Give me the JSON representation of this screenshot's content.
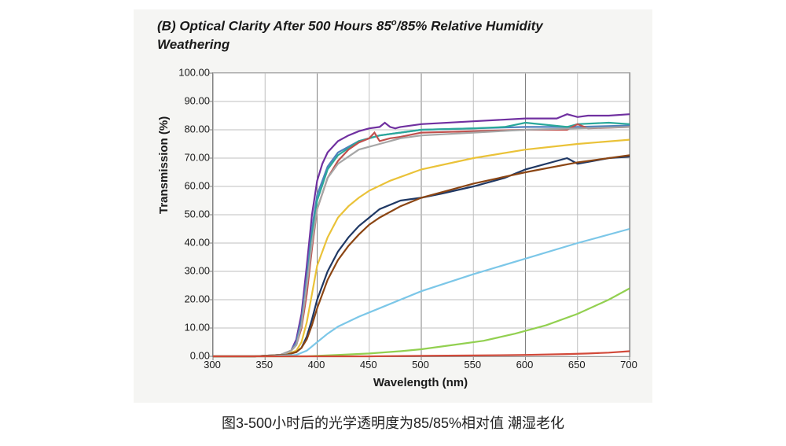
{
  "chart": {
    "type": "line",
    "title_html": "(B) Optical Clarity After 500 Hours 85<sup>o</sup>/85% Relative Humidity Weathering",
    "x_label": "Wavelength (nm)",
    "y_label": "Transmission (%)",
    "xlim": [
      300,
      700
    ],
    "ylim": [
      0,
      100
    ],
    "x_ticks": [
      300,
      350,
      400,
      450,
      500,
      550,
      600,
      650,
      700
    ],
    "y_ticks": [
      0,
      10,
      20,
      30,
      40,
      50,
      60,
      70,
      80,
      90,
      100
    ],
    "y_tick_format": "fixed2",
    "background_color": "#f5f5f3",
    "plot_bg": "#ffffff",
    "grid_color": "#bfbfbf",
    "major_grid_color": "#808080",
    "series": [
      {
        "name": "purple",
        "color": "#7030a0",
        "width": 2.4,
        "x": [
          300,
          340,
          365,
          375,
          380,
          385,
          390,
          395,
          400,
          405,
          410,
          420,
          430,
          440,
          450,
          460,
          465,
          470,
          475,
          480,
          500,
          550,
          600,
          630,
          640,
          650,
          660,
          680,
          700
        ],
        "y": [
          0,
          0,
          0.5,
          2,
          6,
          15,
          32,
          50,
          62,
          68,
          72,
          76,
          78,
          79.5,
          80.5,
          81,
          82.5,
          81,
          80.5,
          81,
          82,
          83,
          84,
          84,
          85.5,
          84.5,
          85,
          85,
          85.5
        ]
      },
      {
        "name": "steelblue",
        "color": "#4f81bd",
        "width": 2.2,
        "x": [
          300,
          340,
          365,
          375,
          380,
          385,
          390,
          395,
          400,
          410,
          420,
          440,
          460,
          480,
          500,
          550,
          600,
          650,
          700
        ],
        "y": [
          0,
          0,
          0.5,
          2,
          5,
          13,
          28,
          45,
          57,
          67,
          72,
          76,
          78,
          79,
          80,
          80.5,
          81,
          81,
          81.5
        ]
      },
      {
        "name": "teal",
        "color": "#2aa89a",
        "width": 2.2,
        "x": [
          300,
          340,
          365,
          375,
          380,
          385,
          390,
          395,
          400,
          410,
          420,
          440,
          460,
          480,
          500,
          550,
          580,
          600,
          640,
          650,
          680,
          700
        ],
        "y": [
          0,
          0,
          0.5,
          2,
          4,
          11,
          25,
          42,
          55,
          66,
          71,
          76,
          78,
          79,
          80,
          80.5,
          81,
          82.5,
          81,
          82,
          82.5,
          82
        ]
      },
      {
        "name": "red",
        "color": "#c0504d",
        "width": 2.4,
        "x": [
          300,
          340,
          365,
          375,
          380,
          385,
          390,
          395,
          400,
          410,
          420,
          430,
          440,
          450,
          455,
          460,
          470,
          480,
          500,
          550,
          600,
          640,
          650,
          660,
          700
        ],
        "y": [
          0,
          0,
          0.5,
          2,
          4,
          10,
          22,
          38,
          52,
          63,
          69,
          73,
          75.5,
          77,
          79,
          76,
          77,
          77.5,
          79,
          79.5,
          80,
          80,
          82,
          80.5,
          81
        ]
      },
      {
        "name": "gray",
        "color": "#a6a6a6",
        "width": 2.2,
        "x": [
          300,
          340,
          365,
          375,
          380,
          385,
          390,
          395,
          400,
          410,
          420,
          440,
          460,
          480,
          500,
          550,
          600,
          650,
          700
        ],
        "y": [
          0,
          0,
          0.5,
          2,
          4,
          11,
          25,
          40,
          52,
          63,
          68,
          73,
          75,
          77,
          78,
          79,
          80,
          80.5,
          81
        ]
      },
      {
        "name": "gold",
        "color": "#eac238",
        "width": 2.4,
        "x": [
          300,
          340,
          370,
          380,
          385,
          390,
          395,
          400,
          410,
          420,
          430,
          440,
          450,
          470,
          500,
          550,
          600,
          650,
          700
        ],
        "y": [
          0,
          0,
          0.5,
          2,
          5,
          12,
          22,
          32,
          42,
          49,
          53,
          56,
          58.5,
          62,
          66,
          70,
          73,
          75,
          76.5
        ]
      },
      {
        "name": "navy",
        "color": "#1f3864",
        "width": 2.2,
        "x": [
          300,
          340,
          370,
          380,
          385,
          390,
          395,
          400,
          410,
          420,
          430,
          440,
          450,
          460,
          480,
          500,
          520,
          550,
          580,
          600,
          640,
          650,
          680,
          700
        ],
        "y": [
          0,
          0,
          0.5,
          1.5,
          3,
          7,
          13,
          20,
          30,
          37,
          42,
          46,
          49,
          52,
          55,
          56,
          57.5,
          60,
          63,
          66,
          70,
          68,
          70,
          70.5
        ]
      },
      {
        "name": "brown",
        "color": "#8b4513",
        "width": 2.2,
        "x": [
          300,
          340,
          370,
          380,
          385,
          390,
          395,
          400,
          410,
          420,
          430,
          440,
          450,
          460,
          480,
          500,
          550,
          600,
          650,
          700
        ],
        "y": [
          0,
          0,
          0.5,
          1.5,
          3,
          6,
          11,
          17,
          27,
          34,
          39,
          43,
          46.5,
          49,
          53,
          56,
          61,
          65,
          68.5,
          71
        ]
      },
      {
        "name": "lightblue",
        "color": "#7cc7e8",
        "width": 2.2,
        "x": [
          300,
          350,
          380,
          390,
          400,
          410,
          420,
          440,
          460,
          480,
          500,
          550,
          600,
          650,
          700
        ],
        "y": [
          0,
          0,
          0.5,
          2,
          5,
          8,
          10.5,
          14,
          17,
          20,
          23,
          29,
          34.5,
          40,
          45
        ]
      },
      {
        "name": "lime",
        "color": "#92d050",
        "width": 2.2,
        "x": [
          300,
          390,
          400,
          420,
          450,
          480,
          500,
          530,
          560,
          590,
          620,
          650,
          680,
          700
        ],
        "y": [
          0,
          0,
          0.2,
          0.5,
          1,
          1.8,
          2.5,
          4,
          5.5,
          8,
          11,
          15,
          20,
          24
        ]
      },
      {
        "name": "red-flat",
        "color": "#d24a3a",
        "width": 2.2,
        "x": [
          300,
          400,
          450,
          500,
          550,
          600,
          640,
          660,
          680,
          700
        ],
        "y": [
          0,
          0,
          0,
          0.2,
          0.3,
          0.5,
          0.8,
          1,
          1.3,
          1.8
        ]
      }
    ]
  },
  "caption": "图3-500小时后的光学透明度为85/85%相对值 潮湿老化"
}
